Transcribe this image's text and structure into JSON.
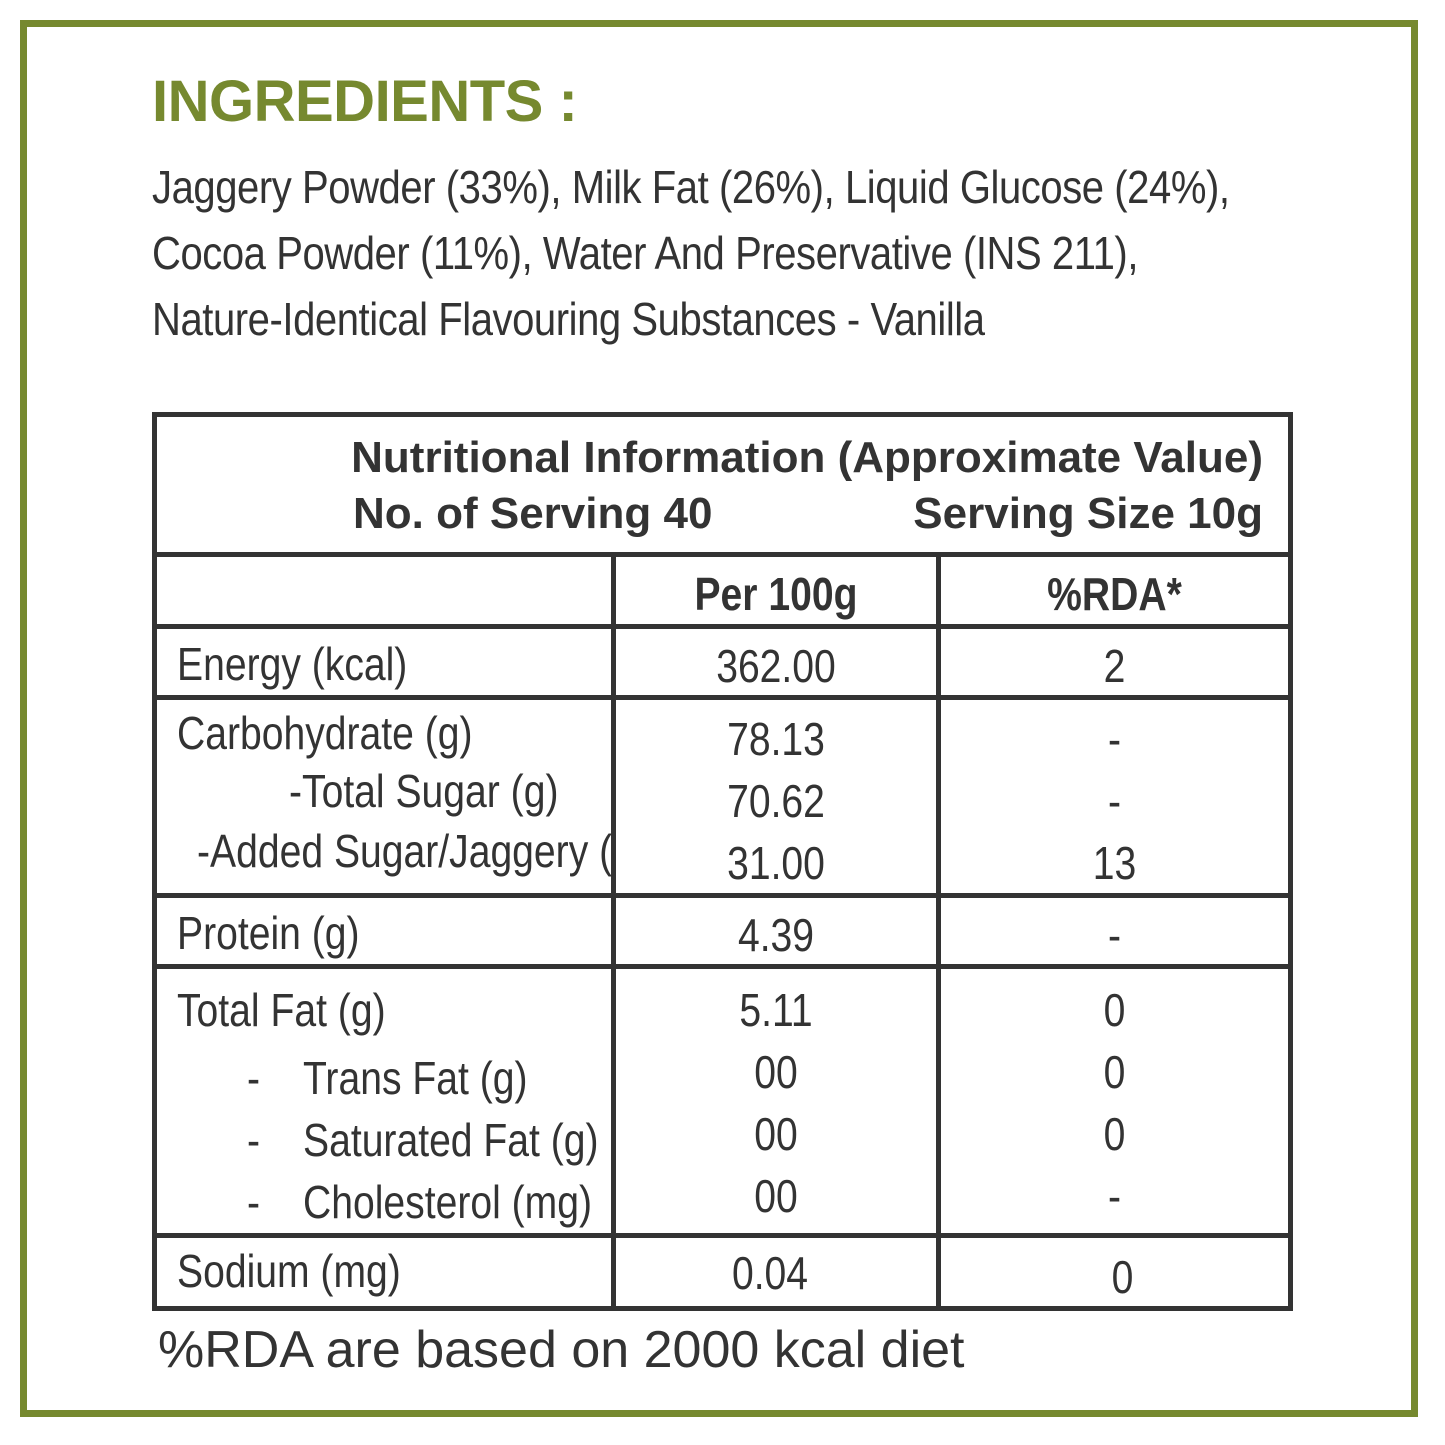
{
  "ingredients": {
    "heading": "INGREDIENTS :",
    "lines": [
      "Jaggery Powder (33%), Milk Fat (26%), Liquid Glucose (24%),",
      "Cocoa Powder (11%), Water And Preservative (INS 211),",
      "Nature-Identical Flavouring Substances - Vanilla"
    ]
  },
  "nutrition": {
    "title": "Nutritional Information (Approximate Value)",
    "servings": "No. of Serving 40",
    "serving_size": "Serving Size 10g",
    "col_per100": "Per 100g",
    "col_rda": "%RDA*",
    "rows": [
      {
        "label": "Energy (kcal)",
        "value": "362.00",
        "rda": "2"
      },
      {
        "label": "Carbohydrate (g)",
        "value": "78.13",
        "rda": "-"
      },
      {
        "label": "-Total Sugar (g)",
        "value": "70.62",
        "rda": "-"
      },
      {
        "label": "-Added Sugar/Jaggery (g)",
        "value": "31.00",
        "rda": "13"
      },
      {
        "label": "Protein (g)",
        "value": "4.39",
        "rda": "-"
      },
      {
        "label": "Total Fat (g)",
        "value": "5.11",
        "rda": "0"
      },
      {
        "dash": "-",
        "label": "Trans Fat (g)",
        "value": "00",
        "rda": "0"
      },
      {
        "dash": "-",
        "label": "Saturated Fat (g)",
        "value": "00",
        "rda": "0"
      },
      {
        "dash": "-",
        "label": "Cholesterol (mg)",
        "value": "00",
        "rda": "-"
      },
      {
        "label": "Sodium (mg)",
        "value": "0.04",
        "rda": "0"
      }
    ],
    "footnote": "%RDA are based on 2000 kcal diet"
  },
  "colors": {
    "accent": "#76892f",
    "text": "#333333"
  }
}
